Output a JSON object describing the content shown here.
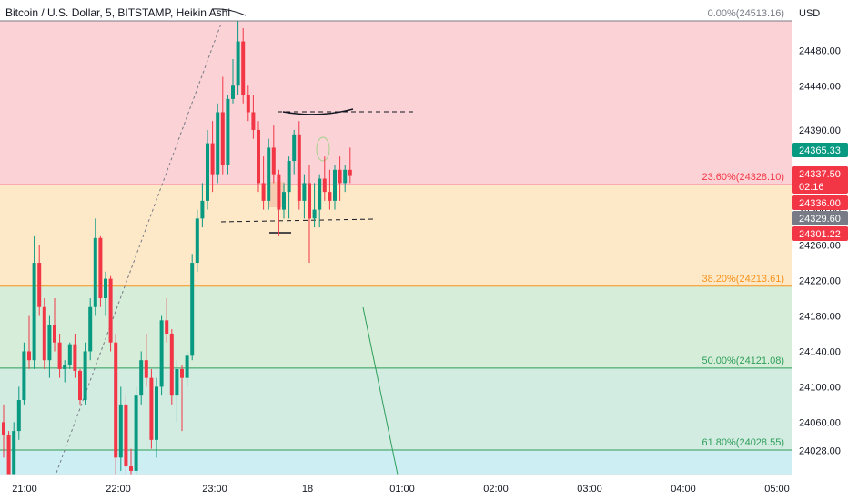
{
  "header": {
    "title": "Bitcoin / U.S. Dollar, 5, BITSTAMP, Heikin Ashi"
  },
  "price_axis": {
    "currency": "USD",
    "ticks": [
      "24480.00",
      "24440.00",
      "24390.00",
      "24340.00",
      "24300.00",
      "24260.00",
      "24220.00",
      "24180.00",
      "24140.00",
      "24100.00",
      "24060.00",
      "24028.00"
    ]
  },
  "time_axis": {
    "ticks": [
      "21:00",
      "22:00",
      "23:00",
      "18",
      "01:00",
      "02:00",
      "03:00",
      "04:00",
      "05:00"
    ]
  },
  "colors": {
    "up": "#089981",
    "down": "#f23645",
    "zone_0_236": "#fbd3d6",
    "zone_236_382": "#fde8c8",
    "zone_382_50": "#d6eed9",
    "zone_50_618": "#d2ece2",
    "zone_below_618": "#cdeff3"
  },
  "badges": [
    {
      "label": "24365.33",
      "value": 24365.33,
      "color": "#089981"
    },
    {
      "label": "24337.50",
      "sub": "02:16",
      "value": 24337.5,
      "color": "#f23645"
    },
    {
      "label": "24336.00",
      "value": 24336.0,
      "color": "#f23645"
    },
    {
      "label": "24329.60",
      "value": 24329.6,
      "color": "#787b86"
    },
    {
      "label": "24301.22",
      "value": 24301.22,
      "color": "#f23645"
    }
  ],
  "chart_data": {
    "type": "candlestick",
    "title": "Bitcoin / U.S. Dollar, 5, BITSTAMP, Heikin Ashi",
    "ylim": [
      24000,
      24520
    ],
    "fib_levels": [
      {
        "label": "0.00%(24513.16)",
        "value": 24513.16,
        "color": "#787b86"
      },
      {
        "label": "23.60%(24328.10)",
        "value": 24328.1,
        "color": "#f23645"
      },
      {
        "label": "38.20%(24213.61)",
        "value": 24213.61,
        "color": "#f7931a"
      },
      {
        "label": "50.00%(24121.08)",
        "value": 24121.08,
        "color": "#2e9e5a"
      },
      {
        "label": "61.80%(24028.55)",
        "value": 24028.55,
        "color": "#2e9e5a"
      }
    ],
    "candles": [
      [
        24060,
        24080,
        24020,
        24045
      ],
      [
        24045,
        24050,
        23990,
        24000
      ],
      [
        24000,
        24060,
        23990,
        24050
      ],
      [
        24050,
        24100,
        24040,
        24085
      ],
      [
        24085,
        24150,
        24080,
        24140
      ],
      [
        24140,
        24180,
        24120,
        24130
      ],
      [
        24130,
        24270,
        24120,
        24240
      ],
      [
        24240,
        24260,
        24180,
        24190
      ],
      [
        24190,
        24200,
        24120,
        24130
      ],
      [
        24130,
        24180,
        24110,
        24170
      ],
      [
        24170,
        24200,
        24140,
        24150
      ],
      [
        24150,
        24160,
        24110,
        24120
      ],
      [
        24120,
        24130,
        24105,
        24125
      ],
      [
        24125,
        24150,
        24120,
        24148
      ],
      [
        24148,
        24160,
        24110,
        24118
      ],
      [
        24118,
        24120,
        24080,
        24085
      ],
      [
        24085,
        24150,
        24080,
        24140
      ],
      [
        24140,
        24200,
        24130,
        24190
      ],
      [
        24190,
        24290,
        24180,
        24268
      ],
      [
        24268,
        24270,
        24190,
        24200
      ],
      [
        24200,
        24230,
        24180,
        24222
      ],
      [
        24222,
        24225,
        24140,
        24150
      ],
      [
        24150,
        24160,
        24000,
        24020
      ],
      [
        24020,
        24100,
        24005,
        24080
      ],
      [
        24080,
        24090,
        24000,
        24010
      ],
      [
        24010,
        24030,
        23990,
        24005
      ],
      [
        24005,
        24100,
        24000,
        24090
      ],
      [
        24090,
        24140,
        24080,
        24130
      ],
      [
        24130,
        24160,
        24100,
        24110
      ],
      [
        24110,
        24120,
        24030,
        24040
      ],
      [
        24040,
        24110,
        24020,
        24100
      ],
      [
        24100,
        24180,
        24090,
        24175
      ],
      [
        24175,
        24200,
        24150,
        24160
      ],
      [
        24160,
        24165,
        24080,
        24090
      ],
      [
        24090,
        24130,
        24060,
        24120
      ],
      [
        24120,
        24125,
        24050,
        24110
      ],
      [
        24110,
        24140,
        24100,
        24135
      ],
      [
        24135,
        24250,
        24130,
        24240
      ],
      [
        24240,
        24300,
        24230,
        24290
      ],
      [
        24290,
        24330,
        24280,
        24310
      ],
      [
        24310,
        24390,
        24300,
        24375
      ],
      [
        24375,
        24400,
        24320,
        24340
      ],
      [
        24340,
        24420,
        24330,
        24410
      ],
      [
        24410,
        24450,
        24340,
        24350
      ],
      [
        24350,
        24430,
        24340,
        24425
      ],
      [
        24425,
        24470,
        24420,
        24440
      ],
      [
        24440,
        24513,
        24430,
        24490
      ],
      [
        24490,
        24505,
        24420,
        24430
      ],
      [
        24430,
        24440,
        24400,
        24410
      ],
      [
        24410,
        24430,
        24380,
        24390
      ],
      [
        24390,
        24400,
        24320,
        24330
      ],
      [
        24330,
        24360,
        24300,
        24310
      ],
      [
        24310,
        24380,
        24300,
        24370
      ],
      [
        24370,
        24395,
        24330,
        24340
      ],
      [
        24340,
        24345,
        24270,
        24300
      ],
      [
        24300,
        24330,
        24290,
        24320
      ],
      [
        24320,
        24360,
        24290,
        24355
      ],
      [
        24355,
        24390,
        24340,
        24385
      ],
      [
        24385,
        24400,
        24300,
        24310
      ],
      [
        24310,
        24340,
        24290,
        24330
      ],
      [
        24330,
        24350,
        24240,
        24290
      ],
      [
        24290,
        24330,
        24280,
        24300
      ],
      [
        24300,
        24340,
        24280,
        24335
      ],
      [
        24335,
        24360,
        24310,
        24320
      ],
      [
        24320,
        24345,
        24300,
        24310
      ],
      [
        24310,
        24350,
        24300,
        24345
      ],
      [
        24345,
        24360,
        24310,
        24330
      ],
      [
        24330,
        24350,
        24320,
        24345
      ],
      [
        24345,
        24370,
        24330,
        24338
      ]
    ]
  }
}
